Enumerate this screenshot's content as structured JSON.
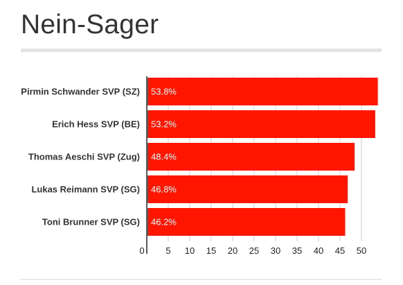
{
  "title": "Nein-Sager",
  "colors": {
    "bar": "#ff1500",
    "grid": "#cccccc",
    "axis": "#222222"
  },
  "chart_data": {
    "type": "bar",
    "orientation": "horizontal",
    "categories": [
      "Pirmin Schwander SVP (SZ)",
      "Erich Hess SVP (BE)",
      "Thomas Aeschi SVP (Zug)",
      "Lukas Reimann SVP (SG)",
      "Toni Brunner SVP (SG)"
    ],
    "values": [
      53.8,
      53.2,
      48.4,
      46.8,
      46.2
    ],
    "value_labels": [
      "53.8%",
      "53.2%",
      "48.4%",
      "46.8%",
      "46.2%"
    ],
    "xlim": [
      0,
      55
    ],
    "xticks": [
      0,
      5,
      10,
      15,
      20,
      25,
      30,
      35,
      40,
      45,
      50
    ],
    "grid": true
  }
}
